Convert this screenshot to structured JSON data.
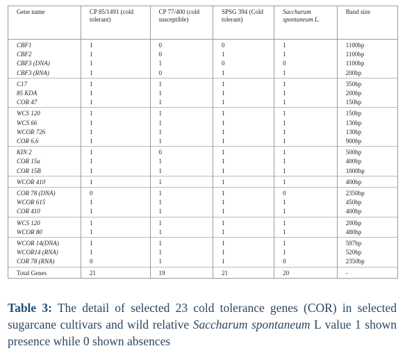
{
  "table": {
    "header": [
      "Gene name",
      "CP 85/1491 (cold tolerant)",
      "CP 77/400 (cold susceptible)",
      "SPSG 394 (Cold tolerant)",
      "Saccharum spontaneum L.",
      "Band size"
    ],
    "groups": [
      [
        [
          "CBF1",
          "1",
          "0",
          "0",
          "1",
          "1100bp"
        ],
        [
          "CBF2",
          "1",
          "0",
          "1",
          "1",
          "1100bp"
        ],
        [
          "CBF3 (DNA)",
          "1",
          "1",
          "0",
          "0",
          "1100bp"
        ],
        [
          "CBF3 (RNA)",
          "1",
          "0",
          "1",
          "1",
          "200bp"
        ]
      ],
      [
        [
          "C17",
          "1",
          "1",
          "1",
          "1",
          "350bp"
        ],
        [
          "85 KDA",
          "1",
          "1",
          "1",
          "1",
          "200bp"
        ],
        [
          "COR 47",
          "1",
          "1",
          "1",
          "1",
          "150bp"
        ]
      ],
      [
        [
          "WCS 120",
          "1",
          "1",
          "1",
          "1",
          "150bp"
        ],
        [
          "WCS 66",
          "1",
          "1",
          "1",
          "1",
          "130bp"
        ],
        [
          "WCOR 726",
          "1",
          "1",
          "1",
          "1",
          "130bp"
        ],
        [
          "COR 6.6",
          "1",
          "1",
          "1",
          "1",
          "900bp"
        ]
      ],
      [
        [
          "KIN 2",
          "1",
          "0",
          "1",
          "1",
          "500bp"
        ],
        [
          "COR 15a",
          "1",
          "1",
          "1",
          "1",
          "400bp"
        ],
        [
          "COR 15B",
          "1",
          "1",
          "1",
          "1",
          "1000bp"
        ]
      ],
      [
        [
          "WCOR 410",
          "1",
          "1",
          "1",
          "1",
          "400bp"
        ]
      ],
      [
        [
          "COR 78 (DNA)",
          "0",
          "1",
          "1",
          "0",
          "2350bp"
        ],
        [
          "WCOR 615",
          "1",
          "1",
          "1",
          "1",
          "450bp"
        ],
        [
          "COR 410",
          "1",
          "1",
          "1",
          "1",
          "400bp"
        ]
      ],
      [
        [
          "WCS 120",
          "1",
          "1",
          "1",
          "1",
          "200bp"
        ],
        [
          "WCOR 80",
          "1",
          "1",
          "1",
          "1",
          "480bp"
        ]
      ],
      [
        [
          "WCOR 14(DNA)",
          "1",
          "1",
          "1",
          "1",
          "597bp"
        ],
        [
          "WCOR14 (RNA)",
          "1",
          "1",
          "1",
          "1",
          "520bp"
        ],
        [
          "COR 78 (RNA)",
          "0",
          "1",
          "1",
          "0",
          "2350bp"
        ]
      ]
    ],
    "total": [
      "Total Genes",
      "21",
      "19",
      "21",
      "20",
      "-"
    ]
  },
  "caption": {
    "label": "Table 3:",
    "text": " The detail of selected 23 cold tolerance genes (COR) in selected sugarcane cultivars and wild relative ",
    "species": "Saccharum spontaneum",
    "text_end": " L value 1 shown presence while 0 shown absences"
  }
}
